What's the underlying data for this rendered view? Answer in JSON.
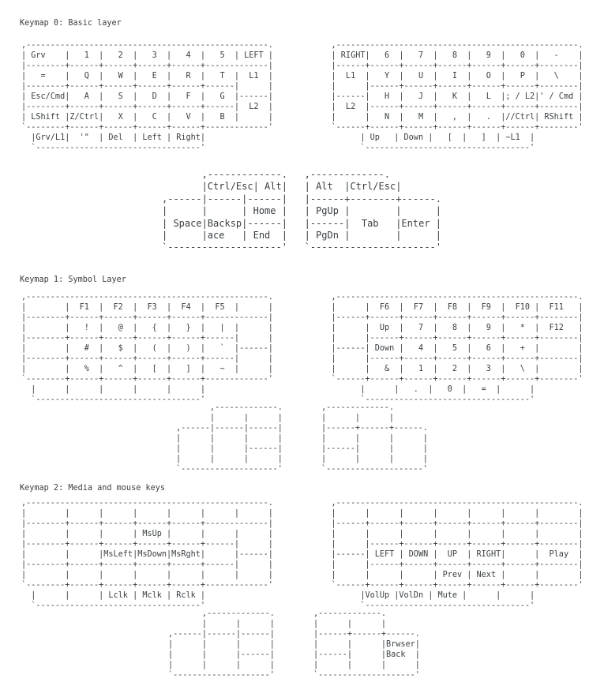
{
  "colors": {
    "background": "#ffffff",
    "text": "#3b4044"
  },
  "keymaps": [
    {
      "title": "Keymap 0: Basic layer",
      "main_art": [
        ",--------------------------------------------------.            ,--------------------------------------------------.",
        "| Grv    |   1  |   2  |   3  |   4  |   5  | LEFT |            | RIGHT|   6  |   7  |   8  |   9  |   0  |   -    |",
        "|--------+------+------+------+------+-------------|            |------+------+------+------+------+------+--------|",
        "|   =    |   Q  |   W  |   E  |   R  |   T  |  L1  |            |  L1  |   Y  |   U  |   I  |   O  |   P  |   \\    |",
        "|--------+------+------+------+------+------|      |            |      |------+------+------+------+------+--------|",
        "| Esc/Cmd|   A  |   S  |   D  |   F  |   G  |------|            |------|   H  |   J  |   K  |   L  |; / L2|' / Cmd |",
        "|--------+------+------+------+------+------|  L2  |            |  L2  |------+------+------+------+------+--------|",
        "| LShift |Z/Ctrl|   X  |   C  |   V  |   B  |      |            |      |   N  |   M  |   ,  |   .  |//Ctrl| RShift |",
        "`--------+------+------+------+------+-------------'            `------+------+------+------+------+------+--------'",
        "  |Grv/L1|  '\"  | Del  | Left | Right|                                | Up   | Down |   [  |   ]  | ~L1  |",
        "  `----------------------------------'                                `----------------------------------'"
      ],
      "thumb_art": [
        "       ,-------------.   ,-------------.",
        "       |Ctrl/Esc| Alt|   | Alt  |Ctrl/Esc|",
        ",------|------|------|   |------+--------+------.",
        "|      |      | Home |   | PgUp |        |      |",
        "| Space|Backsp|------|   |------|  Tab   |Enter |",
        "|      |ace   | End  |   | PgDn |        |      |",
        "`--------------------'   `----------------------'"
      ]
    },
    {
      "title": "Keymap 1: Symbol Layer",
      "main_art": [
        ",--------------------------------------------------.            ,--------------------------------------------------.",
        "|        |  F1  |  F2  |  F3  |  F4  |  F5  |      |            |      |  F6  |  F7  |  F8  |  F9  |  F10 |  F11   |",
        "|--------+------+------+------+------+-------------|            |------+------+------+------+------+------+--------|",
        "|        |   !  |   @  |   {  |   }  |   |  |      |            |      |  Up  |   7  |   8  |   9  |   *  |  F12   |",
        "|--------+------+------+------+------+------|      |            |      |------+------+------+------+------+--------|",
        "|        |   #  |   $  |   (  |   )  |   `  |------|            |------| Down |   4  |   5  |   6  |   +  |        |",
        "|--------+------+------+------+------+------|      |            |      |------+------+------+------+------+--------|",
        "|        |   %  |   ^  |   [  |   ]  |   ~  |      |            |      |   &  |   1  |   2  |   3  |   \\  |        |",
        "`--------+------+------+------+------+-------------'            `------+------+------+------+------+------+--------'",
        "  |      |      |      |      |      |                                |      |   .  |   0  |   =  |      |",
        "  `----------------------------------'                                `----------------------------------'"
      ],
      "thumb_art": [
        "       ,-------------.        ,-------------.",
        "       |      |      |        |      |      |",
        ",------|------|------|        |------+------+------.",
        "|      |      |      |        |      |      |      |",
        "|      |      |------|        |------|      |      |",
        "|      |      |      |        |      |      |      |",
        "`--------------------'        `--------------------'"
      ]
    },
    {
      "title": "Keymap 2: Media and mouse keys",
      "main_art": [
        ",--------------------------------------------------.            ,--------------------------------------------------.",
        "|        |      |      |      |      |      |      |            |      |      |      |      |      |      |        |",
        "|--------+------+------+------+------+-------------|            |------+------+------+------+------+------+--------|",
        "|        |      |      | MsUp |      |      |      |            |      |      |      |      |      |      |        |",
        "|--------+------+------+------+------+------|      |            |      |------+------+------+------+------+--------|",
        "|        |      |MsLeft|MsDown|MsRght|      |------|            |------| LEFT | DOWN |  UP  | RIGHT|      |  Play  |",
        "|--------+------+------+------+------+------|      |            |      |------+------+------+------+------+--------|",
        "|        |      |      |      |      |      |      |            |      |      |      | Prev | Next |      |        |",
        "`--------+------+------+------+------+-------------'            `------+------+------+------+------+------+--------'",
        "  |      |      | Lclk | Mclk | Rclk |                                |VolUp |VolDn | Mute |      |      |",
        "  `----------------------------------'                                `----------------------------------'"
      ],
      "thumb_art": [
        "       ,-------------.        ,-------------.",
        "       |      |      |        |      |      |",
        ",------|------|------|        |------+------+------.",
        "|      |      |      |        |      |      |Brwser|",
        "|      |      |------|        |------|      |Back  |",
        "|      |      |      |        |      |      |      |",
        "`--------------------'        `--------------------'"
      ]
    }
  ]
}
